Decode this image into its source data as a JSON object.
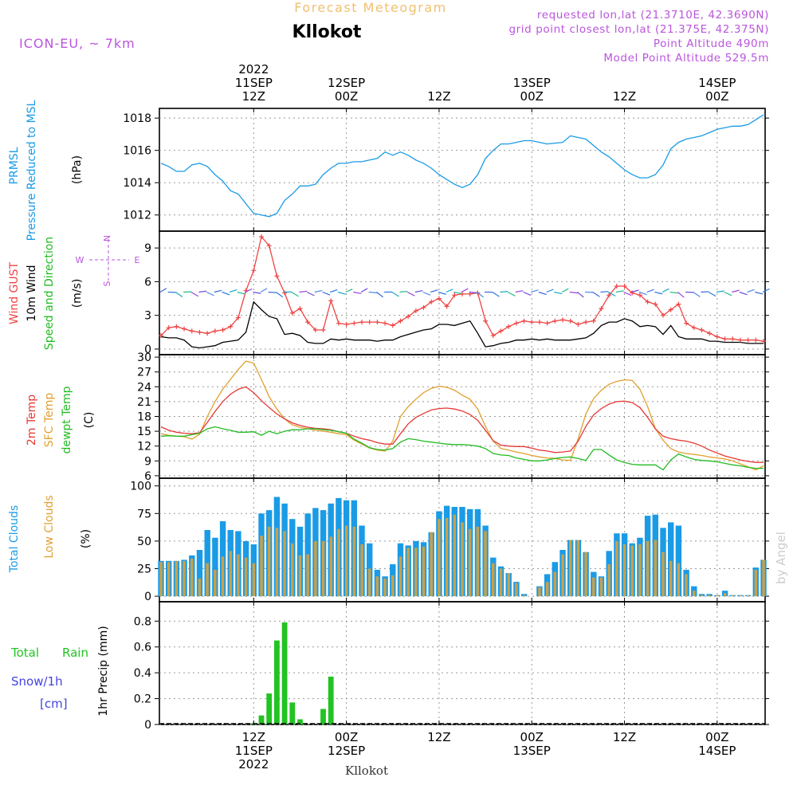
{
  "header": {
    "product": "Forecast Meteogram",
    "model": "ICON-EU, ~ 7km",
    "location": "Kllokot",
    "requested": "requested lon,lat (21.3710E, 42.3690N)",
    "gridpoint": "grid point closest lon,lat (21.375E, 42.375N)",
    "altitude": "Point Altitude 490m",
    "model_altitude": "Model Point Altitude 529.5m",
    "credit": "by Angel",
    "footer_location": "Kllokot"
  },
  "colors": {
    "pressure": "#1a9be6",
    "gust": "#ef4444",
    "wind": "#000000",
    "direction": "#22bb22",
    "t2m": "#e53935",
    "sfc": "#e0a030",
    "dewpt": "#22bb22",
    "total_clouds": "#1a9be6",
    "low_clouds": "#c8a14a",
    "rain": "#22c322",
    "snow": "#4444dd",
    "info": "#bb55dd",
    "label_gold": "#f0c070"
  },
  "time_axis": {
    "top_labels": [
      {
        "h": 12,
        "lines": [
          "2022",
          "11SEP",
          "12Z"
        ]
      },
      {
        "h": 24,
        "lines": [
          "12SEP",
          "00Z"
        ]
      },
      {
        "h": 36,
        "lines": [
          "12Z"
        ]
      },
      {
        "h": 48,
        "lines": [
          "13SEP",
          "00Z"
        ]
      },
      {
        "h": 60,
        "lines": [
          "12Z"
        ]
      },
      {
        "h": 72,
        "lines": [
          "14SEP",
          "00Z"
        ]
      }
    ],
    "bottom_labels": [
      {
        "h": 12,
        "lines": [
          "12Z",
          "11SEP",
          "2022"
        ]
      },
      {
        "h": 24,
        "lines": [
          "00Z",
          "12SEP"
        ]
      },
      {
        "h": 36,
        "lines": [
          "12Z"
        ]
      },
      {
        "h": 48,
        "lines": [
          "00Z",
          "13SEP"
        ]
      },
      {
        "h": 60,
        "lines": [
          "12Z"
        ]
      },
      {
        "h": 72,
        "lines": [
          "00Z",
          "14SEP"
        ]
      }
    ]
  },
  "chart_data": [
    {
      "type": "line",
      "panel": "pressure",
      "title": "PRMSL Pressure Reduced to MSL",
      "ylabel": "(hPa)",
      "ylim": [
        1011,
        1018.6
      ],
      "yticks": [
        1012,
        1014,
        1016,
        1018
      ],
      "grid": true,
      "x_hours_from_11SEP00Z": [
        0,
        1,
        2,
        3,
        4,
        5,
        6,
        7,
        8,
        9,
        10,
        11,
        12,
        13,
        14,
        15,
        16,
        17,
        18,
        19,
        20,
        21,
        22,
        23,
        24,
        25,
        26,
        27,
        28,
        29,
        30,
        31,
        32,
        33,
        34,
        35,
        36,
        37,
        38,
        39,
        40,
        41,
        42,
        43,
        44,
        45,
        46,
        47,
        48,
        49,
        50,
        51,
        52,
        53,
        54,
        55,
        56,
        57,
        58,
        59,
        60,
        61,
        62,
        63,
        64,
        65,
        66,
        67,
        68,
        69,
        70,
        71,
        72,
        73,
        74,
        75,
        76,
        77,
        78
      ],
      "series": [
        {
          "name": "PRMSL",
          "values": [
            1015.2,
            1015.0,
            1014.7,
            1014.7,
            1015.1,
            1015.2,
            1015.0,
            1014.5,
            1014.1,
            1013.5,
            1013.3,
            1012.7,
            1012.1,
            1012.0,
            1011.9,
            1012.1,
            1012.9,
            1013.3,
            1013.8,
            1013.8,
            1013.9,
            1014.5,
            1014.9,
            1015.2,
            1015.2,
            1015.3,
            1015.3,
            1015.4,
            1015.5,
            1015.9,
            1015.7,
            1015.9,
            1015.7,
            1015.4,
            1015.2,
            1014.9,
            1014.5,
            1014.2,
            1013.9,
            1013.7,
            1013.9,
            1014.5,
            1015.5,
            1016.0,
            1016.4,
            1016.4,
            1016.5,
            1016.6,
            1016.6,
            1016.5,
            1016.4,
            1016.45,
            1016.5,
            1016.9,
            1016.8,
            1016.7,
            1016.3,
            1015.9,
            1015.6,
            1015.2,
            1014.8,
            1014.5,
            1014.3,
            1014.3,
            1014.5,
            1015.1,
            1016.1,
            1016.5,
            1016.7,
            1016.8,
            1016.9,
            1017.1,
            1017.3,
            1017.4,
            1017.5,
            1017.5,
            1017.6,
            1017.9,
            1018.2
          ]
        }
      ]
    },
    {
      "type": "line",
      "panel": "wind",
      "title": "Wind GUST / 10m Wind Speed and Direction",
      "ylabel": "(m/s)",
      "ylim": [
        -0.5,
        10.5
      ],
      "yticks": [
        0,
        3,
        6,
        9
      ],
      "grid": true,
      "compass": [
        "N",
        "W",
        "E",
        "S"
      ],
      "series": [
        {
          "name": "Wind GUST",
          "values": [
            1.2,
            1.9,
            2.0,
            1.8,
            1.6,
            1.5,
            1.4,
            1.6,
            1.7,
            2.0,
            2.8,
            5.2,
            7.0,
            10.0,
            9.2,
            6.5,
            5.0,
            3.2,
            3.6,
            2.4,
            1.7,
            1.7,
            4.3,
            2.3,
            2.2,
            2.3,
            2.4,
            2.4,
            2.4,
            2.3,
            2.1,
            2.5,
            2.9,
            3.4,
            3.7,
            4.2,
            4.5,
            3.8,
            4.8,
            4.9,
            4.9,
            5.0,
            2.5,
            1.2,
            1.6,
            2.0,
            2.3,
            2.5,
            2.4,
            2.4,
            2.3,
            2.5,
            2.6,
            2.5,
            2.2,
            2.4,
            2.5,
            3.6,
            4.8,
            5.6,
            5.6,
            5.0,
            4.8,
            4.2,
            4.0,
            3.0,
            3.5,
            4.0,
            2.3,
            1.9,
            1.7,
            1.4,
            1.1,
            0.9,
            0.9,
            0.8,
            0.8,
            0.8,
            0.7
          ]
        },
        {
          "name": "10m Wind",
          "values": [
            1.1,
            1.0,
            1.0,
            0.8,
            0.2,
            0.1,
            0.2,
            0.3,
            0.6,
            0.7,
            0.8,
            1.5,
            4.2,
            3.5,
            2.9,
            2.7,
            1.3,
            1.4,
            1.2,
            0.6,
            0.5,
            0.5,
            0.9,
            0.8,
            0.9,
            0.8,
            0.8,
            0.8,
            0.7,
            0.8,
            0.8,
            1.1,
            1.3,
            1.5,
            1.7,
            1.8,
            2.2,
            2.2,
            2.1,
            2.3,
            2.5,
            1.4,
            0.2,
            0.3,
            0.5,
            0.6,
            0.8,
            0.8,
            0.9,
            0.8,
            0.9,
            0.8,
            0.8,
            0.8,
            0.9,
            1.0,
            1.4,
            2.1,
            2.4,
            2.4,
            2.7,
            2.5,
            2.0,
            2.1,
            2.0,
            1.3,
            2.1,
            1.1,
            0.9,
            0.9,
            0.9,
            0.7,
            0.7,
            0.6,
            0.6,
            0.6,
            0.5,
            0.5,
            0.5
          ]
        }
      ]
    },
    {
      "type": "line",
      "panel": "temperature",
      "title": "2m Temp / SFC Temp / dewpt Temp",
      "ylabel": "(C)",
      "ylim": [
        5.5,
        30.5
      ],
      "yticks": [
        6,
        9,
        12,
        15,
        18,
        21,
        24,
        27,
        30
      ],
      "grid": true,
      "series": [
        {
          "name": "2m Temp",
          "values": [
            15.9,
            15.2,
            14.8,
            14.6,
            14.5,
            14.7,
            16.8,
            19.0,
            21.0,
            22.5,
            23.5,
            24.0,
            22.8,
            21.2,
            19.8,
            18.5,
            17.5,
            16.7,
            16.2,
            15.8,
            15.6,
            15.5,
            15.3,
            14.9,
            14.6,
            14.0,
            13.5,
            13.2,
            12.7,
            12.4,
            12.4,
            14.5,
            16.5,
            17.8,
            18.6,
            19.3,
            19.6,
            19.7,
            19.5,
            19.1,
            18.4,
            17.2,
            15.2,
            13.1,
            12.2,
            12.0,
            11.9,
            11.9,
            11.6,
            11.2,
            11.0,
            10.7,
            10.8,
            11.0,
            13.0,
            16.0,
            18.3,
            19.6,
            20.5,
            21.0,
            21.1,
            20.8,
            19.8,
            17.8,
            15.5,
            14.0,
            13.5,
            13.2,
            13.0,
            12.6,
            12.0,
            11.2,
            10.6,
            10.0,
            9.6,
            9.2,
            8.9,
            8.7,
            8.7
          ]
        },
        {
          "name": "SFC Temp",
          "values": [
            14.5,
            14.2,
            14.0,
            13.9,
            13.4,
            14.4,
            18.0,
            21.0,
            23.5,
            25.5,
            27.5,
            29.2,
            28.8,
            25.5,
            22.0,
            19.5,
            17.5,
            16.3,
            15.8,
            15.5,
            15.2,
            15.0,
            14.8,
            14.5,
            14.3,
            13.2,
            12.4,
            11.6,
            11.2,
            11.0,
            13.0,
            18.0,
            20.0,
            21.5,
            22.8,
            23.7,
            24.1,
            23.9,
            23.3,
            22.3,
            21.5,
            19.5,
            16.0,
            13.0,
            11.5,
            11.2,
            10.8,
            10.5,
            10.1,
            9.8,
            9.6,
            9.5,
            9.2,
            9.1,
            13.5,
            18.5,
            21.6,
            23.3,
            24.5,
            25.1,
            25.4,
            25.3,
            23.5,
            20.0,
            15.5,
            13.2,
            11.5,
            10.8,
            10.5,
            10.3,
            10.1,
            9.8,
            9.6,
            9.4,
            9.0,
            8.4,
            7.8,
            7.2,
            8.0
          ]
        },
        {
          "name": "dewpt Temp",
          "values": [
            14.0,
            14.1,
            14.0,
            14.0,
            14.3,
            14.6,
            15.5,
            15.9,
            15.5,
            15.2,
            14.8,
            14.8,
            14.9,
            14.2,
            15.0,
            14.5,
            15.0,
            15.3,
            15.3,
            15.5,
            15.5,
            15.3,
            15.2,
            14.9,
            14.6,
            13.4,
            12.6,
            11.7,
            11.3,
            11.2,
            11.5,
            12.8,
            13.5,
            13.3,
            13.0,
            12.8,
            12.6,
            12.4,
            12.3,
            12.3,
            12.2,
            12.0,
            11.5,
            10.5,
            10.2,
            10.1,
            9.6,
            9.3,
            9.0,
            9.0,
            9.2,
            9.5,
            9.7,
            9.8,
            9.5,
            9.1,
            11.3,
            11.3,
            10.2,
            9.2,
            8.7,
            8.3,
            8.2,
            8.2,
            8.2,
            7.2,
            9.2,
            10.4,
            9.8,
            9.3,
            9.1,
            9.0,
            8.8,
            8.5,
            8.2,
            8.0,
            7.7,
            7.5,
            7.5
          ]
        }
      ]
    },
    {
      "type": "bar",
      "panel": "clouds",
      "title": "Total Clouds / Low Clouds",
      "ylabel": "(%)",
      "ylim": [
        -5,
        107
      ],
      "yticks": [
        0,
        25,
        50,
        75,
        100
      ],
      "grid": true,
      "series": [
        {
          "name": "Total Clouds",
          "values": [
            32,
            32,
            32,
            33,
            37,
            42,
            60,
            53,
            68,
            60,
            59,
            50,
            47,
            75,
            78,
            90,
            84,
            70,
            63,
            75,
            80,
            78,
            84,
            89,
            87,
            87,
            64,
            48,
            24,
            18,
            29,
            48,
            46,
            50,
            49,
            58,
            77,
            82,
            81,
            81,
            79,
            79,
            64,
            35,
            27,
            21,
            13,
            2,
            0,
            9,
            20,
            31,
            42,
            51,
            51,
            40,
            22,
            18,
            41,
            57,
            57,
            48,
            53,
            73,
            74,
            62,
            67,
            64,
            24,
            9,
            2,
            2,
            1,
            5,
            1,
            1,
            1,
            26,
            33
          ]
        },
        {
          "name": "Low Clouds",
          "values": [
            31,
            31,
            32,
            32,
            34,
            16,
            30,
            24,
            36,
            41,
            38,
            35,
            30,
            55,
            63,
            62,
            59,
            48,
            37,
            38,
            50,
            50,
            54,
            61,
            64,
            63,
            47,
            25,
            18,
            16,
            19,
            36,
            44,
            44,
            45,
            58,
            70,
            71,
            74,
            67,
            61,
            63,
            59,
            30,
            25,
            21,
            12,
            1,
            0,
            8,
            13,
            22,
            38,
            51,
            51,
            40,
            17,
            17,
            29,
            50,
            47,
            46,
            47,
            50,
            51,
            40,
            32,
            30,
            20,
            5,
            1,
            1,
            1,
            3,
            1,
            1,
            1,
            24,
            33
          ]
        }
      ]
    },
    {
      "type": "bar",
      "panel": "precip",
      "title": "Total Rain / Snow/1h [cm]",
      "ylabel": "1hr Precip (mm)",
      "ylim": [
        0,
        0.95
      ],
      "yticks": [
        0,
        0.2,
        0.4,
        0.6,
        0.8
      ],
      "grid": true,
      "series": [
        {
          "name": "Total Rain",
          "values": [
            0,
            0,
            0,
            0,
            0,
            0,
            0,
            0,
            0,
            0,
            0,
            0,
            0.01,
            0.07,
            0.24,
            0.65,
            0.79,
            0.17,
            0.04,
            0,
            0,
            0.12,
            0.37,
            0,
            0,
            0,
            0,
            0,
            0,
            0,
            0,
            0,
            0,
            0,
            0,
            0,
            0,
            0,
            0,
            0,
            0,
            0,
            0,
            0,
            0,
            0,
            0,
            0,
            0,
            0,
            0,
            0,
            0,
            0,
            0,
            0,
            0,
            0,
            0,
            0,
            0,
            0,
            0,
            0,
            0,
            0,
            0,
            0,
            0,
            0,
            0,
            0,
            0,
            0,
            0,
            0,
            0,
            0,
            0
          ]
        },
        {
          "name": "Snow/1h",
          "values": [
            0,
            0,
            0,
            0,
            0,
            0,
            0,
            0,
            0,
            0,
            0,
            0,
            0,
            0,
            0,
            0,
            0,
            0,
            0,
            0,
            0,
            0,
            0,
            0,
            0,
            0,
            0,
            0,
            0,
            0,
            0,
            0,
            0,
            0,
            0,
            0,
            0,
            0,
            0,
            0,
            0,
            0,
            0,
            0,
            0,
            0,
            0,
            0,
            0,
            0,
            0,
            0,
            0,
            0,
            0,
            0,
            0,
            0,
            0,
            0,
            0,
            0,
            0,
            0,
            0,
            0,
            0,
            0,
            0,
            0,
            0,
            0,
            0,
            0,
            0,
            0,
            0,
            0,
            0
          ]
        }
      ]
    }
  ]
}
